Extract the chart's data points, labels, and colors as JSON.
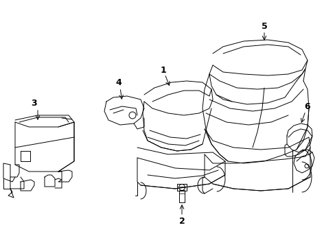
{
  "background_color": "#ffffff",
  "line_color": "#000000",
  "label_color": "#000000",
  "figsize": [
    4.89,
    3.6
  ],
  "dpi": 100,
  "label_fontsize": 9,
  "border_color": "#aaaaaa"
}
